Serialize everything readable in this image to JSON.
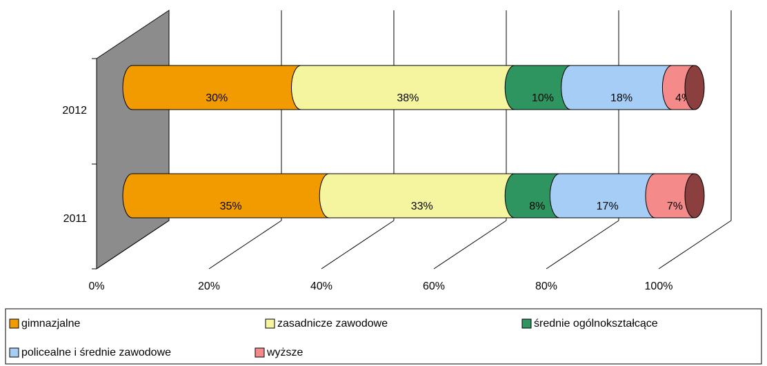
{
  "chart_data": {
    "type": "bar3d_stacked_horizontal",
    "categories": [
      "2012",
      "2011"
    ],
    "series": [
      {
        "name": "gimnazjalne",
        "color": "#f29b00",
        "values": [
          30,
          35
        ],
        "value_labels": [
          "30%",
          "35%"
        ]
      },
      {
        "name": "zasadnicze zawodowe",
        "color": "#f5f5a0",
        "values": [
          38,
          33
        ],
        "value_labels": [
          "38%",
          "33%"
        ]
      },
      {
        "name": "średnie ogólnokształcące",
        "color": "#2e9460",
        "values": [
          10,
          8
        ],
        "value_labels": [
          "10%",
          "8%"
        ]
      },
      {
        "name": "policealne i średnie zawodowe",
        "color": "#a6cdf5",
        "values": [
          18,
          17
        ],
        "value_labels": [
          "18%",
          "17%"
        ]
      },
      {
        "name": "wyższe",
        "color": "#f48a8a",
        "values": [
          4,
          7
        ],
        "value_labels": [
          "4%",
          "7%"
        ]
      }
    ],
    "xlim": [
      0,
      100
    ],
    "xticks": [
      {
        "value": 0,
        "label": "0%"
      },
      {
        "value": 20,
        "label": "20%"
      },
      {
        "value": 40,
        "label": "40%"
      },
      {
        "value": 60,
        "label": "60%"
      },
      {
        "value": 80,
        "label": "80%"
      },
      {
        "value": 100,
        "label": "100%"
      }
    ],
    "grid": true
  }
}
